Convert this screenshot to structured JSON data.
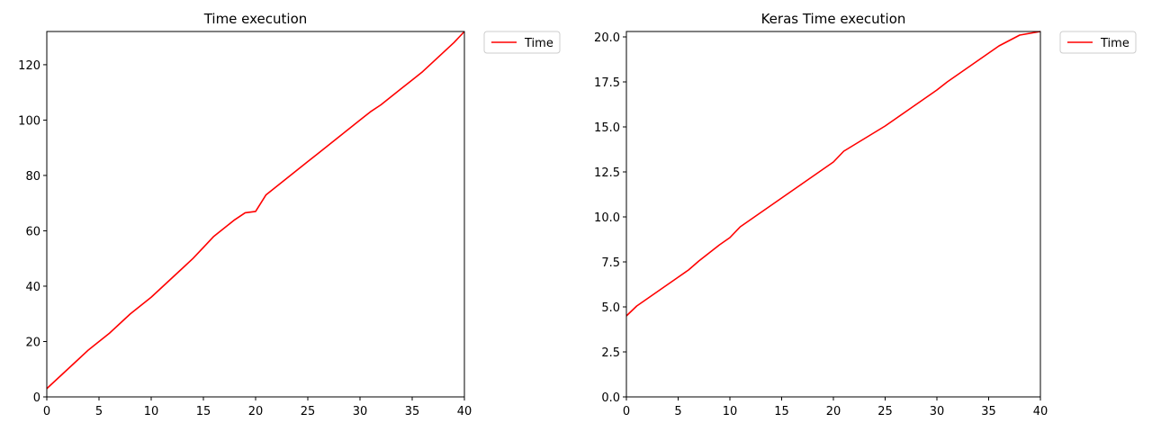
{
  "chart_data": [
    {
      "type": "line",
      "title": "Time execution",
      "xlabel": "",
      "ylabel": "",
      "xlim": [
        0,
        40
      ],
      "ylim": [
        0,
        132
      ],
      "xticks": [
        0,
        5,
        10,
        15,
        20,
        25,
        30,
        35,
        40
      ],
      "yticks": [
        0,
        20,
        40,
        60,
        80,
        100,
        120
      ],
      "grid": false,
      "legend": "outside-top-right",
      "series": [
        {
          "name": "Time",
          "color": "#ff0000",
          "x": [
            0,
            1,
            2,
            3,
            4,
            5,
            6,
            7,
            8,
            9,
            10,
            11,
            12,
            13,
            14,
            15,
            16,
            17,
            18,
            19,
            20,
            21,
            22,
            23,
            24,
            25,
            26,
            27,
            28,
            29,
            30,
            31,
            32,
            33,
            34,
            35,
            36,
            37,
            38,
            39,
            40
          ],
          "y": [
            3,
            6.5,
            10,
            13.5,
            17,
            20,
            23,
            26.5,
            30,
            33,
            36,
            39.5,
            43,
            46.5,
            50,
            54,
            58,
            61,
            64,
            66.5,
            67,
            73,
            76,
            79,
            82,
            85,
            88,
            91,
            94,
            97,
            100,
            103,
            105.5,
            108.5,
            111.5,
            114.5,
            117.5,
            121,
            124.5,
            128,
            132
          ]
        }
      ]
    },
    {
      "type": "line",
      "title": "Keras Time execution",
      "xlabel": "",
      "ylabel": "",
      "xlim": [
        0,
        40
      ],
      "ylim": [
        0,
        20.3
      ],
      "xticks": [
        0,
        5,
        10,
        15,
        20,
        25,
        30,
        35,
        40
      ],
      "yticks": [
        0.0,
        2.5,
        5.0,
        7.5,
        10.0,
        12.5,
        15.0,
        17.5,
        20.0
      ],
      "grid": false,
      "legend": "outside-top-right",
      "series": [
        {
          "name": "Time",
          "color": "#ff0000",
          "x": [
            0,
            1,
            2,
            3,
            4,
            5,
            6,
            7,
            8,
            9,
            10,
            11,
            12,
            13,
            14,
            15,
            16,
            17,
            18,
            19,
            20,
            21,
            22,
            23,
            24,
            25,
            26,
            27,
            28,
            29,
            30,
            31,
            32,
            33,
            34,
            35,
            36,
            37,
            38,
            39,
            40
          ],
          "y": [
            4.5,
            5.05,
            5.45,
            5.85,
            6.25,
            6.65,
            7.05,
            7.55,
            8.0,
            8.45,
            8.85,
            9.45,
            9.85,
            10.25,
            10.65,
            11.05,
            11.45,
            11.85,
            12.25,
            12.65,
            13.05,
            13.65,
            14.0,
            14.35,
            14.7,
            15.05,
            15.45,
            15.85,
            16.25,
            16.65,
            17.05,
            17.5,
            17.9,
            18.3,
            18.7,
            19.1,
            19.5,
            19.8,
            20.1,
            20.2,
            20.3
          ]
        }
      ]
    }
  ]
}
